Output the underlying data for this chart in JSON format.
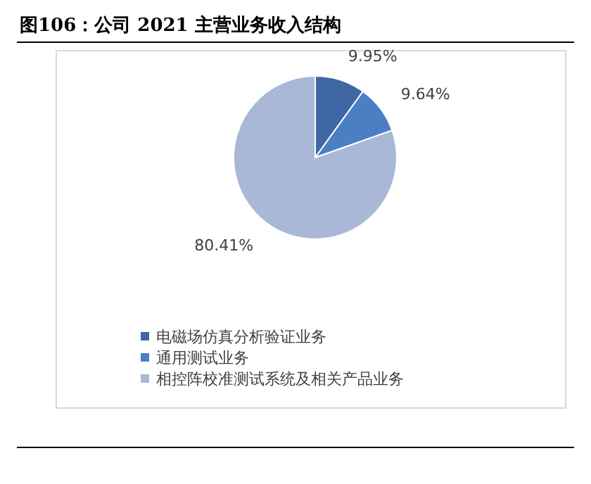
{
  "chart_data": {
    "type": "pie",
    "title": "图106：公司 2021 主营业务收入结构",
    "categories": [
      "电磁场仿真分析验证业务",
      "通用测试业务",
      "相控阵校准测试系统及相关产品业务"
    ],
    "values": [
      9.95,
      9.64,
      80.41
    ],
    "colors": [
      "#3e67a3",
      "#4a7fc4",
      "#a8b8d6"
    ],
    "value_labels": [
      "9.95%",
      "9.64%",
      "80.41%"
    ],
    "legend": "bottom"
  }
}
